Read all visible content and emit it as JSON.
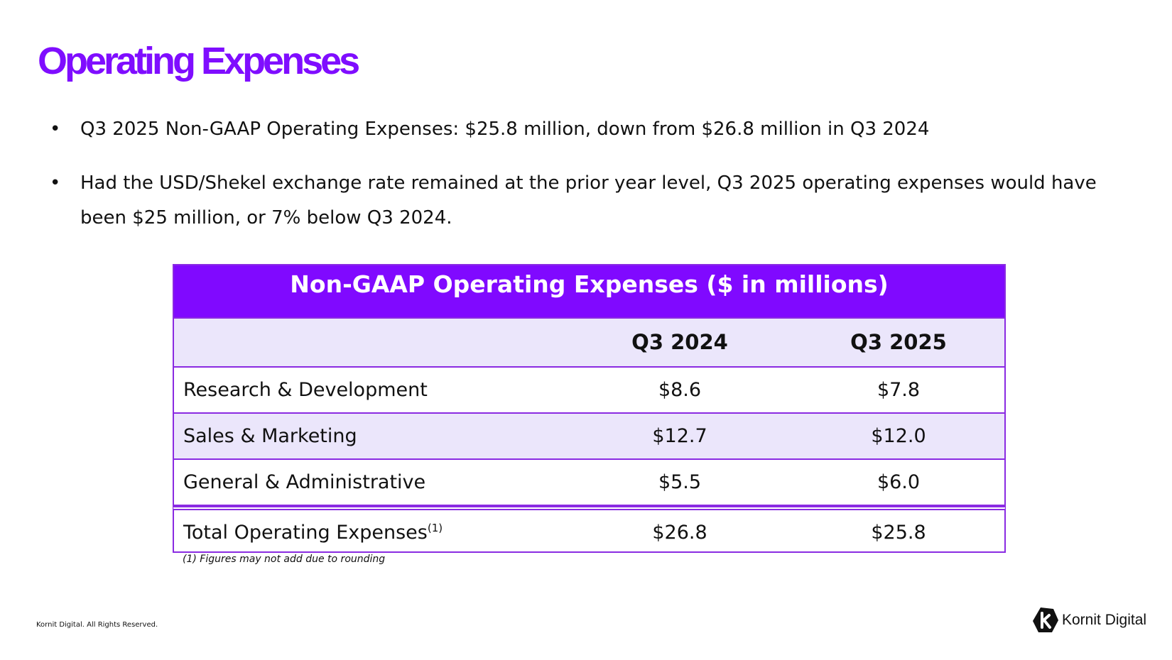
{
  "header": {
    "title": "Operating Expenses"
  },
  "bullets": [
    "Q3 2025 Non-GAAP Operating Expenses: $25.8 million, down from $26.8 million in Q3 2024",
    "Had the USD/Shekel exchange rate remained at the prior year level, Q3 2025 operating expenses would have been $25 million, or 7% below Q3 2024."
  ],
  "table": {
    "title": "Non-GAAP Operating Expenses ($ in millions)",
    "columns": [
      "Q3 2024",
      "Q3 2025"
    ],
    "rows": [
      [
        "Research & Development",
        "$8.6",
        "$7.8"
      ],
      [
        "Sales & Marketing",
        "$12.7",
        "$12.0"
      ],
      [
        "General & Administrative",
        "$5.5",
        "$6.0"
      ]
    ],
    "total": {
      "label": "Total Operating Expenses",
      "note": "(1)",
      "values": [
        "$26.8",
        "$25.8"
      ]
    },
    "footnote": "(1) Figures may not add due to rounding"
  },
  "footer": {
    "copyright": "Kornit Digital. All Rights Reserved.",
    "logo": "Kornit Digital"
  }
}
